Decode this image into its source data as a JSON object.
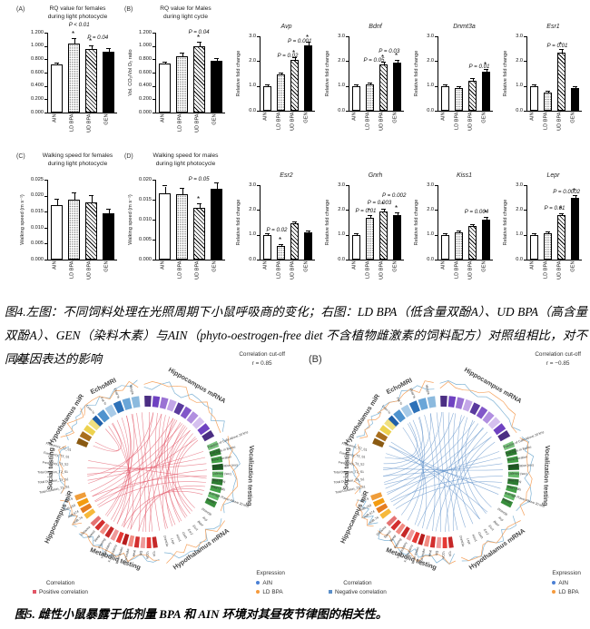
{
  "fig4": {
    "caption": "图4.左图：不同饲料处理在光照周期下小鼠呼吸商的变化；右图：LD BPA（低含量双酚A）、UD BPA（高含量双酚A）、GEN（染料木素）与AIN（phyto-oestrogen-free diet 不含植物雌激素的饲料配方）对照组相比，对不同基因表达的影响"
  },
  "chart_data": {
    "type": "bar",
    "categories": [
      "AIN",
      "LD BPA",
      "UD BPA",
      "GEN"
    ],
    "respirometry_panels": [
      {
        "corner": "(A)",
        "title_lines": [
          "RQ value for females",
          "during light photocycle"
        ],
        "ylabel": "",
        "yticks": [
          "0.000",
          "0.200",
          "0.400",
          "0.600",
          "0.800",
          "1.000",
          "1.200"
        ],
        "ytick_values": [
          0,
          0.2,
          0.4,
          0.6,
          0.8,
          1.0,
          1.2
        ],
        "ymax": 1.2,
        "values": [
          0.72,
          1.03,
          0.95,
          0.92
        ],
        "errors": [
          0.02,
          0.07,
          0.05,
          0.035
        ],
        "sig": [
          false,
          true,
          true,
          false
        ],
        "annotations": [
          {
            "t": "P < 0.01",
            "xf": 0.45,
            "yf": -0.14
          },
          {
            "t": "P = 0.04",
            "xf": 0.72,
            "yf": 0.02
          }
        ]
      },
      {
        "corner": "(B)",
        "title_lines": [
          "RQ value for Males",
          "during light cycle"
        ],
        "ylabel": "Vol. CO₂/Vol O₂ ratio",
        "yticks": [
          "0.000",
          "0.200",
          "0.400",
          "0.600",
          "0.800",
          "1.000",
          "1.200"
        ],
        "ytick_values": [
          0,
          0.2,
          0.4,
          0.6,
          0.8,
          1.0,
          1.2
        ],
        "ymax": 1.2,
        "values": [
          0.73,
          0.85,
          0.99,
          0.78
        ],
        "errors": [
          0.02,
          0.04,
          0.06,
          0.03
        ],
        "sig": [
          false,
          false,
          true,
          false
        ],
        "annotations": [
          {
            "t": "P = 0.04",
            "xf": 0.62,
            "yf": -0.04
          }
        ]
      },
      {
        "corner": "(C)",
        "title_lines": [
          "Walking speed for females",
          "during light photocycle"
        ],
        "ylabel": "Walking speed (m s⁻¹)",
        "yticks": [
          "0.000",
          "0.005",
          "0.010",
          "0.015",
          "0.020",
          "0.025"
        ],
        "ytick_values": [
          0,
          0.005,
          0.01,
          0.015,
          0.02,
          0.025
        ],
        "ymax": 0.025,
        "values": [
          0.017,
          0.0188,
          0.018,
          0.0145
        ],
        "errors": [
          0.0018,
          0.002,
          0.0018,
          0.0012
        ],
        "sig": [
          false,
          false,
          false,
          false
        ],
        "annotations": []
      },
      {
        "corner": "(D)",
        "title_lines": [
          "Walking speed for males",
          "during light photocycle"
        ],
        "ylabel": "Walking speed (m s⁻¹)",
        "yticks": [
          "0.000",
          "0.005",
          "0.010",
          "0.015",
          "0.020"
        ],
        "ytick_values": [
          0,
          0.005,
          0.01,
          0.015,
          0.02
        ],
        "ymax": 0.02,
        "values": [
          0.0167,
          0.0164,
          0.0129,
          0.0178
        ],
        "errors": [
          0.0016,
          0.0013,
          0.001,
          0.0012
        ],
        "sig": [
          false,
          false,
          true,
          false
        ],
        "annotations": [
          {
            "t": "P = 0.05",
            "xf": 0.62,
            "yf": -0.05
          }
        ]
      }
    ],
    "gene_ylabel": "Relative fold change",
    "gene_yticks": [
      "0.0",
      "1.0",
      "2.0",
      "3.0"
    ],
    "gene_ytick_values": [
      0,
      1.0,
      2.0,
      3.0
    ],
    "gene_ymax": 3.0,
    "gene_panels": [
      {
        "name": "Avp",
        "values": [
          1.0,
          1.47,
          2.05,
          2.65
        ],
        "errors": [
          0.03,
          0.04,
          0.07,
          0.08
        ],
        "sig": [
          false,
          false,
          true,
          true
        ],
        "annotations": [
          {
            "t": "P = 0.02",
            "xf": 0.5,
            "yf": 0.22
          },
          {
            "t": "P = 0.001",
            "xf": 0.72,
            "yf": 0.02
          }
        ]
      },
      {
        "name": "Bdnf",
        "values": [
          1.0,
          1.05,
          1.85,
          1.95
        ],
        "errors": [
          0.03,
          0.04,
          0.08,
          0.07
        ],
        "sig": [
          false,
          false,
          true,
          true
        ],
        "annotations": [
          {
            "t": "P = 0.05",
            "xf": 0.45,
            "yf": 0.28
          },
          {
            "t": "P = 0.03",
            "xf": 0.73,
            "yf": 0.16
          }
        ]
      },
      {
        "name": "Dnmt3a",
        "values": [
          1.0,
          0.92,
          1.22,
          1.57
        ],
        "errors": [
          0.03,
          0.03,
          0.05,
          0.06
        ],
        "sig": [
          false,
          false,
          false,
          true
        ],
        "annotations": [
          {
            "t": "P = 0.01",
            "xf": 0.75,
            "yf": 0.36
          }
        ]
      },
      {
        "name": "Esr1",
        "values": [
          1.0,
          0.75,
          2.35,
          0.93
        ],
        "errors": [
          0.03,
          0.03,
          0.09,
          0.04
        ],
        "sig": [
          false,
          false,
          true,
          false
        ],
        "annotations": [
          {
            "t": "P = 0.01",
            "xf": 0.55,
            "yf": 0.08
          }
        ]
      },
      {
        "name": "Esr2",
        "values": [
          1.0,
          0.55,
          1.45,
          1.1
        ],
        "errors": [
          0.03,
          0.04,
          0.05,
          0.04
        ],
        "sig": [
          false,
          true,
          false,
          false
        ],
        "annotations": [
          {
            "t": "P = 0.02",
            "xf": 0.3,
            "yf": 0.56
          }
        ]
      },
      {
        "name": "Gnrh",
        "values": [
          1.0,
          1.7,
          1.95,
          1.8
        ],
        "errors": [
          0.03,
          0.06,
          0.07,
          0.06
        ],
        "sig": [
          false,
          true,
          true,
          true
        ],
        "annotations": [
          {
            "t": "P = 0.01",
            "xf": 0.3,
            "yf": 0.3
          },
          {
            "t": "P = 0.003",
            "xf": 0.55,
            "yf": 0.2
          },
          {
            "t": "P = 0.002",
            "xf": 0.82,
            "yf": 0.1
          }
        ]
      },
      {
        "name": "Kiss1",
        "values": [
          1.0,
          1.1,
          1.35,
          1.62
        ],
        "errors": [
          0.03,
          0.04,
          0.05,
          0.06
        ],
        "sig": [
          false,
          false,
          false,
          true
        ],
        "annotations": [
          {
            "t": "P = 0.004",
            "xf": 0.7,
            "yf": 0.32
          }
        ]
      },
      {
        "name": "Lepr",
        "values": [
          1.0,
          1.07,
          1.78,
          2.5
        ],
        "errors": [
          0.03,
          0.04,
          0.06,
          0.07
        ],
        "sig": [
          false,
          false,
          true,
          true
        ],
        "annotations": [
          {
            "t": "P = 0.01",
            "xf": 0.5,
            "yf": 0.27
          },
          {
            "t": "P = 0.0002",
            "xf": 0.72,
            "yf": 0.05
          }
        ]
      }
    ]
  },
  "fig5": {
    "caption": "图5. 雌性小鼠暴露于低剂量 BPA 和 AIN 环境对其昼夜节律图的相关性。",
    "cutoff_title": "Correlation cut-off",
    "correlation_legend_title": "Correlation",
    "expression_legend_title": "Expression",
    "expression_items": [
      {
        "label": "AIN",
        "color": "#4a7fd4"
      },
      {
        "label": "LD BPA",
        "color": "#f59a3c"
      }
    ],
    "zigzag_colors": [
      "#7fb3d5",
      "#f5a25d"
    ],
    "sectors": [
      {
        "name": "EchoMRI",
        "start": -48,
        "end": -6,
        "segments": 6,
        "palette": [
          "#1f5fa8",
          "#4f93ce",
          "#a8cbe8",
          "#2d71b8",
          "#6aa6d8",
          "#8cbade"
        ],
        "labels": [
          "Lean %",
          "Fat %",
          "Fluid %",
          "Weight"
        ],
        "mode": "out",
        "title_r": 104
      },
      {
        "name": "Hippocampus mRNA",
        "start": -2,
        "end": 62,
        "segments": 10,
        "palette": [
          "#4b2e83",
          "#6f42c1",
          "#9a73d4",
          "#c3a6e8",
          "#5a3a9e",
          "#8257c9",
          "#b18fe0",
          "#d5c0ef",
          "#6f42c1",
          "#4b2e83"
        ],
        "title_r": 108
      },
      {
        "name": "Vocalization testing",
        "start": 66,
        "end": 118,
        "segments": 9,
        "palette": [
          "#7bc47f",
          "#2e7d32",
          "#43a047",
          "#1b5e20",
          "#66bb6a",
          "#2e7d32",
          "#43a047",
          "#66bb6a",
          "#388e3c"
        ],
        "labels": [
          "Fraction of Calls Above 20 kHz",
          "# of Calls in Bursts",
          "Burst Duration",
          "Call Duration (ms)",
          "Latency (sec)",
          "Med Freq",
          "Total Calls",
          "Average Power Above 20 kHz",
          "Bands"
        ],
        "mode": "radial-out",
        "title_r": 112
      },
      {
        "name": "Hypothalamus mRNA",
        "start": 122,
        "end": 168,
        "segments": 0,
        "labels": [
          "Dnmt3b",
          "Avp",
          "Bdnf",
          "Esr1",
          "Esr2",
          "Gnrh",
          "Kiss1",
          "Lepr",
          "Dnmt3a"
        ],
        "mode": "radial-in",
        "italic": true,
        "title_r": 106
      },
      {
        "name": "Metabolic testing",
        "start": 172,
        "end": 228,
        "segments": 12,
        "palette": [
          "#c62828",
          "#e53935",
          "#ef9a9a",
          "#d32f2f",
          "#f28b82",
          "#b71c1c",
          "#e53935",
          "#ef9a9a",
          "#c62828",
          "#f28b82",
          "#d32f2f",
          "#e57373"
        ],
        "labels": [
          "VO₂",
          "VCO₂",
          "RQ",
          "Heat",
          "Food Intake",
          "Water Intake",
          "X Ambulatory",
          "Y Ambulatory",
          "Rearing",
          "Sleep",
          "Speed",
          "Distance"
        ],
        "mode": "out",
        "title_r": 104
      },
      {
        "name": "Hippocampus miR",
        "start": 232,
        "end": 252,
        "segments": 4,
        "palette": [
          "#f6b93b",
          "#e67e22",
          "#f39c12",
          "#ef9d3a"
        ],
        "labels": [
          "miR-7a",
          "miR-674",
          "miR-153",
          "miR-9"
        ],
        "mode": "out",
        "title_r": 108,
        "trot": -65
      },
      {
        "name": "Social testing",
        "start": 256,
        "end": 288,
        "segments": 0,
        "labels": [
          "Total Duration_T3_S1",
          "Total Duration_T3_S2",
          "Total Duration_T2_S1",
          "Frequency_T3_S2",
          "Frequency_T3_S1",
          "Frequency_T2_S1"
        ],
        "mode": "out",
        "title_r": 104
      },
      {
        "name": "Hypothalamus miR",
        "start": 292,
        "end": 314,
        "segments": 4,
        "palette": [
          "#8a5a12",
          "#a96f1e",
          "#edd24e",
          "#f0e080"
        ],
        "title_r": 104
      }
    ],
    "plots": [
      {
        "label": "(A)",
        "cutoff_value": "r = 0.85",
        "correlation_label": "Positive correlation",
        "line_color": "#e25566",
        "chords": [
          [
            -40,
            196
          ],
          [
            -35,
            203
          ],
          [
            -30,
            210
          ],
          [
            -25,
            217
          ],
          [
            -20,
            224
          ],
          [
            -15,
            188
          ],
          [
            -10,
            181
          ],
          [
            -5,
            175
          ],
          [
            2,
            168
          ],
          [
            6,
            210
          ],
          [
            10,
            160
          ],
          [
            14,
            152
          ],
          [
            18,
            145
          ],
          [
            22,
            138
          ],
          [
            26,
            131
          ],
          [
            30,
            205
          ],
          [
            34,
            199
          ],
          [
            38,
            147
          ],
          [
            42,
            155
          ],
          [
            46,
            162
          ],
          [
            50,
            140
          ],
          [
            54,
            134
          ],
          [
            58,
            127
          ],
          [
            70,
            262
          ],
          [
            76,
            268
          ],
          [
            82,
            274
          ],
          [
            88,
            240
          ],
          [
            94,
            246
          ],
          [
            100,
            234
          ],
          [
            104,
            188
          ],
          [
            108,
            196
          ],
          [
            112,
            203
          ],
          [
            -44,
            300
          ],
          [
            -36,
            296
          ],
          [
            236,
            56
          ],
          [
            241,
            46
          ],
          [
            246,
            36
          ],
          [
            251,
            26
          ],
          [
            281,
            96
          ],
          [
            266,
            14
          ],
          [
            259,
            6
          ],
          [
            222,
            -14
          ],
          [
            214,
            -20
          ],
          [
            178,
            40
          ],
          [
            184,
            28
          ]
        ]
      },
      {
        "label": "(B)",
        "cutoff_value": "r = −0.85",
        "correlation_label": "Negative correlation",
        "line_color": "#5b8fc9",
        "chords": [
          [
            -42,
            200
          ],
          [
            -36,
            208
          ],
          [
            -30,
            216
          ],
          [
            -24,
            224
          ],
          [
            -18,
            190
          ],
          [
            -12,
            182
          ],
          [
            -6,
            174
          ],
          [
            0,
            166
          ],
          [
            6,
            158
          ],
          [
            12,
            150
          ],
          [
            18,
            142
          ],
          [
            24,
            134
          ],
          [
            30,
            126
          ],
          [
            36,
            205
          ],
          [
            42,
            196
          ],
          [
            48,
            187
          ],
          [
            54,
            178
          ],
          [
            60,
            170
          ],
          [
            70,
            250
          ],
          [
            76,
            258
          ],
          [
            82,
            266
          ],
          [
            88,
            274
          ],
          [
            94,
            240
          ],
          [
            100,
            232
          ],
          [
            236,
            54
          ],
          [
            242,
            43
          ],
          [
            248,
            32
          ],
          [
            254,
            21
          ],
          [
            260,
            10
          ],
          [
            266,
            -1
          ],
          [
            272,
            -12
          ],
          [
            278,
            -23
          ],
          [
            284,
            -34
          ],
          [
            300,
            132
          ],
          [
            296,
            142
          ],
          [
            112,
            296
          ],
          [
            106,
            288
          ]
        ]
      }
    ]
  }
}
